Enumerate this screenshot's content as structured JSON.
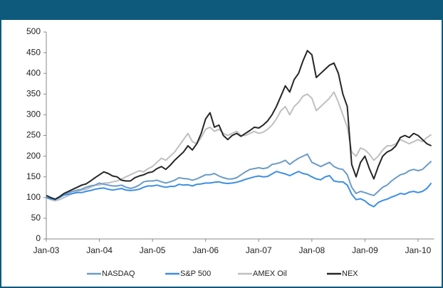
{
  "chart_data": {
    "type": "line",
    "categories": [
      "Jan-03",
      null,
      null,
      null,
      null,
      null,
      null,
      null,
      null,
      null,
      null,
      null,
      "Jan-04",
      null,
      null,
      null,
      null,
      null,
      null,
      null,
      null,
      null,
      null,
      null,
      "Jan-05",
      null,
      null,
      null,
      null,
      null,
      null,
      null,
      null,
      null,
      null,
      null,
      "Jan-06",
      null,
      null,
      null,
      null,
      null,
      null,
      null,
      null,
      null,
      null,
      null,
      "Jan-07",
      null,
      null,
      null,
      null,
      null,
      null,
      null,
      null,
      null,
      null,
      null,
      "Jan-08",
      null,
      null,
      null,
      null,
      null,
      null,
      null,
      null,
      null,
      null,
      null,
      "Jan-09",
      null,
      null,
      null,
      null,
      null,
      null,
      null,
      null,
      null,
      null,
      null,
      "Jan-10",
      null,
      null,
      null
    ],
    "series": [
      {
        "name": "NASDAQ",
        "color": "#6b9bc8",
        "values": [
          100,
          98,
          96,
          100,
          108,
          112,
          115,
          118,
          120,
          125,
          128,
          130,
          135,
          132,
          130,
          128,
          128,
          130,
          125,
          122,
          125,
          130,
          138,
          140,
          140,
          142,
          138,
          135,
          138,
          142,
          148,
          146,
          145,
          142,
          145,
          150,
          155,
          155,
          158,
          152,
          148,
          145,
          145,
          148,
          155,
          162,
          168,
          170,
          172,
          170,
          172,
          180,
          182,
          185,
          190,
          180,
          188,
          195,
          200,
          205,
          185,
          180,
          175,
          180,
          185,
          175,
          170,
          168,
          155,
          125,
          110,
          115,
          112,
          108,
          105,
          115,
          125,
          130,
          140,
          148,
          155,
          158,
          165,
          168,
          165,
          168,
          178,
          188
        ]
      },
      {
        "name": "S&P 500",
        "color": "#3b8ee6",
        "values": [
          100,
          97,
          95,
          100,
          106,
          108,
          110,
          112,
          112,
          115,
          117,
          120,
          122,
          123,
          120,
          118,
          120,
          122,
          118,
          117,
          118,
          120,
          125,
          128,
          128,
          130,
          127,
          125,
          127,
          127,
          132,
          130,
          131,
          128,
          132,
          133,
          135,
          135,
          137,
          138,
          135,
          134,
          135,
          137,
          140,
          144,
          147,
          150,
          152,
          150,
          151,
          157,
          163,
          160,
          157,
          153,
          158,
          163,
          158,
          156,
          150,
          145,
          143,
          150,
          153,
          140,
          138,
          138,
          130,
          108,
          95,
          97,
          92,
          83,
          78,
          88,
          93,
          96,
          101,
          105,
          110,
          108,
          113,
          115,
          112,
          115,
          122,
          135
        ]
      },
      {
        "name": "AMEX Oil",
        "color": "#bfbfbf",
        "values": [
          100,
          95,
          92,
          95,
          100,
          105,
          110,
          115,
          118,
          120,
          125,
          130,
          130,
          135,
          135,
          138,
          140,
          145,
          150,
          155,
          160,
          165,
          162,
          170,
          175,
          185,
          195,
          190,
          200,
          210,
          225,
          240,
          255,
          235,
          230,
          245,
          265,
          270,
          260,
          265,
          255,
          250,
          255,
          260,
          250,
          250,
          255,
          260,
          255,
          258,
          265,
          275,
          290,
          310,
          320,
          300,
          320,
          330,
          345,
          350,
          340,
          310,
          320,
          330,
          340,
          355,
          330,
          300,
          270,
          210,
          200,
          220,
          215,
          205,
          190,
          200,
          215,
          225,
          225,
          230,
          240,
          235,
          230,
          235,
          240,
          235,
          245,
          252
        ]
      },
      {
        "name": "NEX",
        "color": "#262626",
        "values": [
          105,
          100,
          96,
          102,
          110,
          115,
          120,
          125,
          130,
          133,
          140,
          148,
          155,
          162,
          158,
          152,
          150,
          142,
          140,
          140,
          148,
          152,
          155,
          160,
          162,
          170,
          175,
          168,
          178,
          190,
          200,
          210,
          225,
          215,
          230,
          255,
          290,
          305,
          270,
          275,
          250,
          240,
          250,
          255,
          248,
          255,
          262,
          270,
          268,
          275,
          285,
          300,
          320,
          345,
          370,
          355,
          385,
          400,
          430,
          455,
          445,
          390,
          400,
          410,
          420,
          425,
          400,
          350,
          320,
          180,
          150,
          185,
          200,
          170,
          145,
          175,
          200,
          210,
          215,
          225,
          245,
          250,
          245,
          255,
          250,
          240,
          230,
          225
        ]
      }
    ],
    "ylim": [
      0,
      500
    ],
    "yticks": [
      0,
      50,
      100,
      150,
      200,
      250,
      300,
      350,
      400,
      450,
      500
    ]
  }
}
